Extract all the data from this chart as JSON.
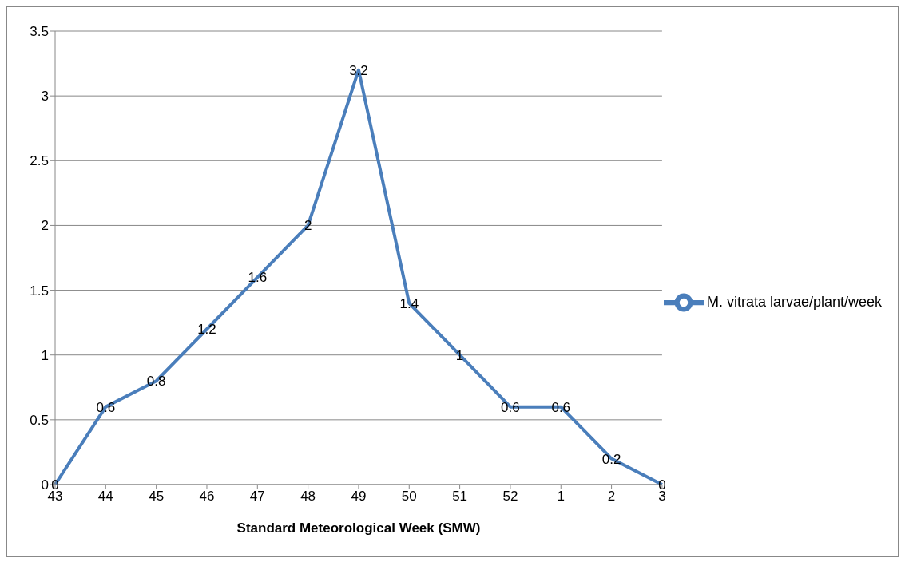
{
  "chart_data": {
    "type": "line",
    "xlabel": "Standard Meteorological Week (SMW)",
    "categories": [
      "43",
      "44",
      "45",
      "46",
      "47",
      "48",
      "49",
      "50",
      "51",
      "52",
      "1",
      "2",
      "3"
    ],
    "series": [
      {
        "name": "M. vitrata larvae/plant/week",
        "color": "#4a7ebb",
        "values": [
          0,
          0.6,
          0.8,
          1.2,
          1.6,
          2,
          3.2,
          1.4,
          1,
          0.6,
          0.6,
          0.2,
          0
        ]
      }
    ],
    "ylim": [
      0,
      3.5
    ],
    "yticks": [
      0,
      0.5,
      1,
      1.5,
      2,
      2.5,
      3,
      3.5
    ],
    "grid": "y",
    "legend": "right",
    "marker": "none",
    "line_style": "solid",
    "data_labels": true
  }
}
